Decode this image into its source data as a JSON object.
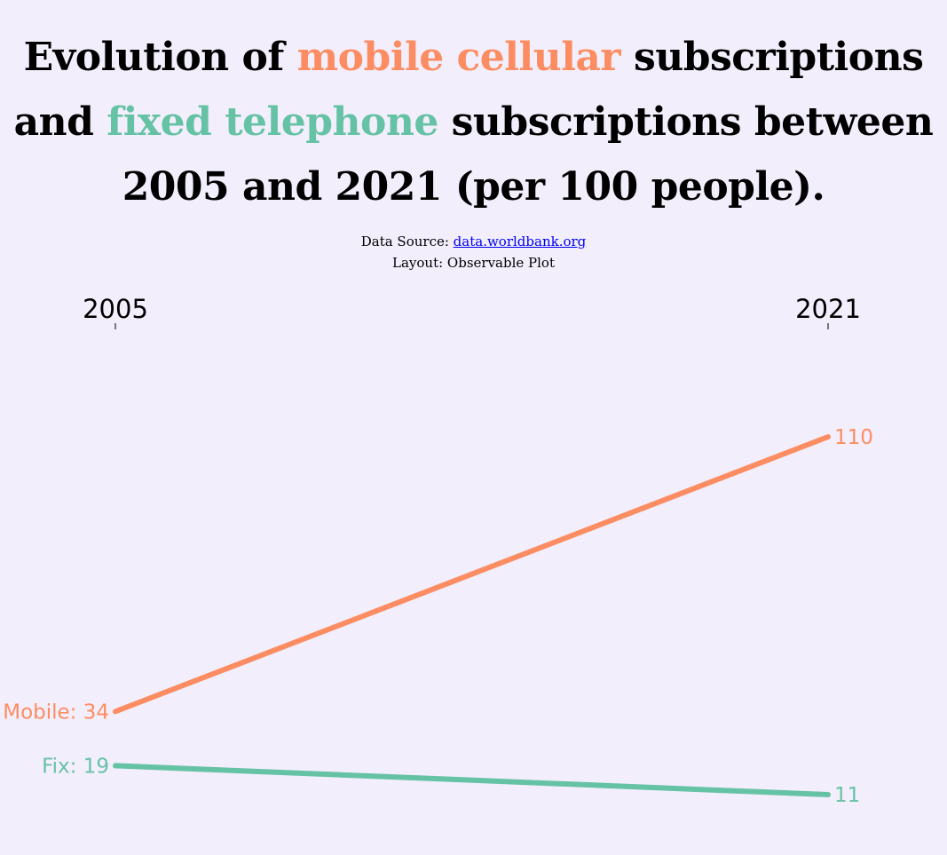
{
  "title": {
    "part1": "Evolution of ",
    "mobile_highlight": "mobile cellular",
    "part2": " subscriptions and ",
    "fixed_highlight": "fixed telephone",
    "part3": " subscriptions between 2005 and 2021 (per 100 people)."
  },
  "source": {
    "label": "Data Source: ",
    "link_text": "data.worldbank.org",
    "layout_text": "Layout: Observable Plot"
  },
  "colors": {
    "mobile": "#fc8d62",
    "fixed": "#66c2a5",
    "background": "#f2eefc"
  },
  "chart_data": {
    "type": "line",
    "title": "Evolution of mobile cellular subscriptions and fixed telephone subscriptions between 2005 and 2021 (per 100 people).",
    "x": [
      2005,
      2021
    ],
    "x_tick_labels": [
      "2005",
      "2021"
    ],
    "axis_position": "top",
    "grid": false,
    "series": [
      {
        "name": "Mobile",
        "values": [
          34,
          110
        ],
        "start_label": "Mobile: 34",
        "end_label": "110",
        "color": "#fc8d62"
      },
      {
        "name": "Fix",
        "values": [
          19,
          11
        ],
        "start_label": "Fix: 19",
        "end_label": "11",
        "color": "#66c2a5"
      }
    ]
  }
}
